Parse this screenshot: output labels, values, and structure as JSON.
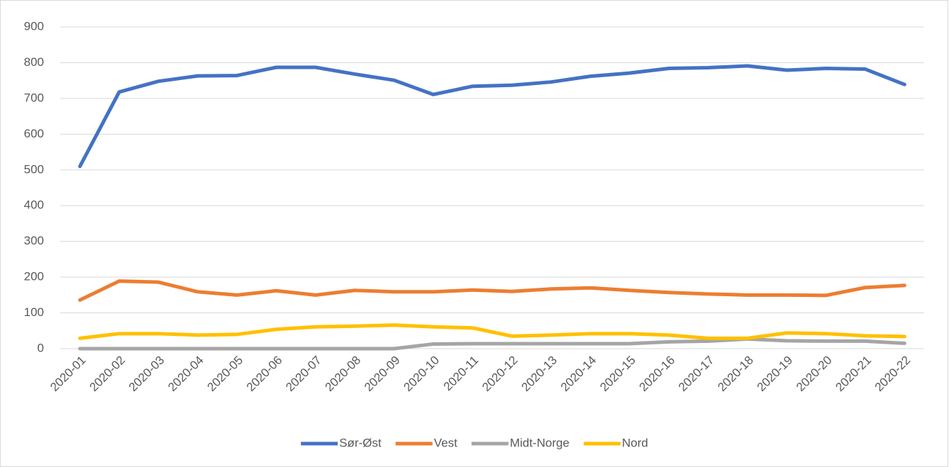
{
  "chart_data": {
    "type": "line",
    "categories": [
      "2020-01",
      "2020-02",
      "2020-03",
      "2020-04",
      "2020-05",
      "2020-06",
      "2020-07",
      "2020-08",
      "2020-09",
      "2020-10",
      "2020-11",
      "2020-12",
      "2020-13",
      "2020-14",
      "2020-15",
      "2020-16",
      "2020-17",
      "2020-18",
      "2020-19",
      "2020-20",
      "2020-21",
      "2020-22"
    ],
    "series": [
      {
        "name": "Sør-Øst",
        "color": "#4472c4",
        "values": [
          510,
          718,
          748,
          763,
          764,
          787,
          787,
          768,
          751,
          711,
          734,
          737,
          746,
          762,
          771,
          784,
          786,
          791,
          779,
          784,
          782,
          739
        ]
      },
      {
        "name": "Vest",
        "color": "#ed7d31",
        "values": [
          136,
          189,
          186,
          159,
          150,
          162,
          150,
          163,
          159,
          159,
          164,
          160,
          167,
          170,
          163,
          157,
          153,
          150,
          150,
          149,
          171,
          177
        ]
      },
      {
        "name": "Midt-Norge",
        "color": "#a5a5a5",
        "values": [
          0,
          0,
          0,
          0,
          0,
          0,
          0,
          0,
          0,
          13,
          14,
          14,
          14,
          14,
          14,
          19,
          21,
          27,
          22,
          21,
          21,
          15
        ]
      },
      {
        "name": "Nord",
        "color": "#ffc000",
        "values": [
          29,
          42,
          42,
          38,
          40,
          54,
          61,
          63,
          66,
          61,
          58,
          35,
          38,
          42,
          42,
          38,
          29,
          29,
          44,
          42,
          36,
          34
        ]
      }
    ],
    "ylim": [
      0,
      900
    ],
    "yticks": [
      0,
      100,
      200,
      300,
      400,
      500,
      600,
      700,
      800,
      900
    ],
    "grid": true,
    "legend": "bottom"
  }
}
